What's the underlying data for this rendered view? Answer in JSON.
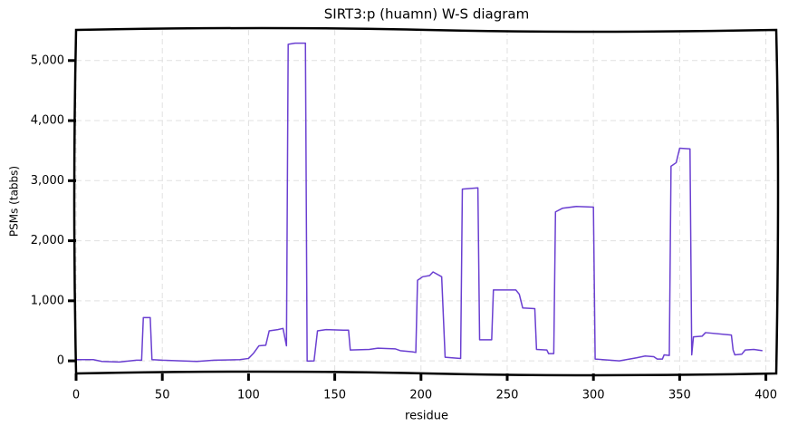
{
  "chart_data": {
    "type": "line",
    "title": "SIRT3:p (huamn) W-S diagram",
    "x_label": "residue",
    "y_label": "PSMs (tabbs)",
    "color": "#6a3fd1",
    "grid": true,
    "xlim": [
      0,
      406
    ],
    "ylim": [
      -210,
      5510
    ],
    "xticks": [
      0,
      50,
      100,
      150,
      200,
      250,
      300,
      350,
      400
    ],
    "yticks": [
      0,
      {
        "value": 1000,
        "label": "1,000"
      },
      {
        "value": 2000,
        "label": "2,000"
      },
      {
        "value": 3000,
        "label": "3,000"
      },
      {
        "value": 4000,
        "label": "4,000"
      },
      {
        "value": 5000,
        "label": "5,000"
      }
    ],
    "x": [
      0,
      10,
      15,
      25,
      35,
      38,
      39,
      43,
      44,
      50,
      70,
      80,
      95,
      100,
      103,
      106,
      110,
      112,
      117,
      120,
      122,
      123,
      127,
      133,
      134,
      138,
      140,
      145,
      155,
      158,
      159,
      170,
      175,
      185,
      188,
      195,
      197,
      198,
      201,
      205,
      207,
      212,
      214,
      223,
      224,
      233,
      234,
      241,
      242,
      255,
      257,
      259,
      266,
      267,
      273,
      274,
      277,
      278,
      282,
      290,
      300,
      301,
      315,
      325,
      330,
      335,
      337,
      340,
      341,
      344,
      345,
      348,
      350,
      356,
      357,
      358,
      363,
      365,
      380,
      381,
      382,
      386,
      388,
      393,
      398
    ],
    "values": [
      20,
      20,
      -10,
      -20,
      10,
      10,
      720,
      720,
      20,
      10,
      -10,
      10,
      20,
      40,
      130,
      250,
      260,
      500,
      520,
      540,
      250,
      5270,
      5290,
      5290,
      -5,
      0,
      500,
      520,
      510,
      510,
      180,
      190,
      210,
      200,
      170,
      150,
      140,
      1340,
      1400,
      1420,
      1480,
      1400,
      60,
      40,
      2860,
      2880,
      350,
      350,
      1180,
      1180,
      1110,
      880,
      870,
      190,
      180,
      120,
      120,
      2480,
      2540,
      2570,
      2560,
      30,
      0,
      50,
      80,
      70,
      30,
      30,
      100,
      90,
      3240,
      3300,
      3540,
      3530,
      100,
      400,
      410,
      470,
      430,
      180,
      100,
      110,
      180,
      190,
      170
    ]
  }
}
